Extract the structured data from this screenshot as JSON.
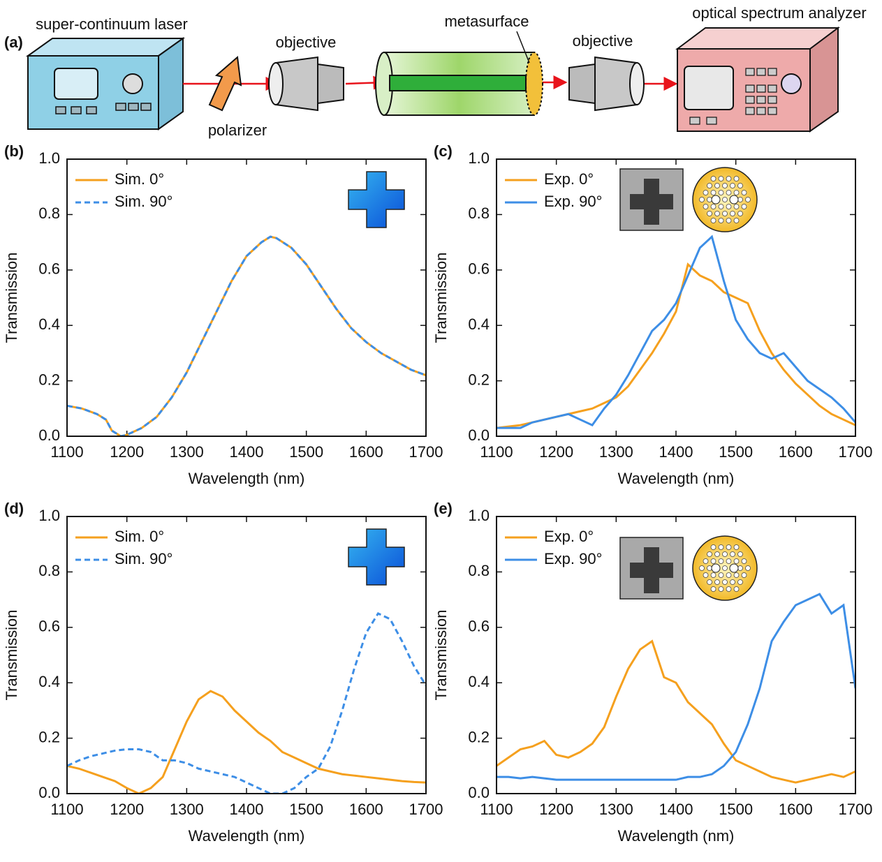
{
  "diagram": {
    "label": "(a)",
    "laser": "super-continuum laser",
    "polarizer": "polarizer",
    "objective_1": "objective",
    "metasurface": "metasurface",
    "objective_2": "objective",
    "analyzer": "optical spectrum analyzer"
  },
  "chart_data": [
    {
      "type": "line",
      "panel_label": "(b)",
      "xlabel": "Wavelength (nm)",
      "ylabel": "Transmission",
      "xlim": [
        1100,
        1700
      ],
      "xticks": [
        1100,
        1200,
        1300,
        1400,
        1500,
        1600,
        1700
      ],
      "ylim": [
        0,
        1
      ],
      "yticks": [
        {
          "value": 0,
          "label": "0.0"
        },
        0.2,
        0.4,
        0.6,
        0.8,
        {
          "value": 1,
          "label": "1.0"
        }
      ],
      "legend": "upper-left",
      "x": [
        1100,
        1125,
        1150,
        1165,
        1175,
        1190,
        1200,
        1225,
        1250,
        1275,
        1300,
        1325,
        1350,
        1375,
        1400,
        1425,
        1440,
        1450,
        1475,
        1500,
        1525,
        1550,
        1575,
        1600,
        1625,
        1650,
        1675,
        1700
      ],
      "series": [
        {
          "name": "Sim. 0°",
          "color": "#f5a01e",
          "dash": false,
          "values": [
            0.11,
            0.1,
            0.08,
            0.06,
            0.02,
            0.0,
            0.005,
            0.03,
            0.07,
            0.14,
            0.23,
            0.34,
            0.45,
            0.56,
            0.65,
            0.7,
            0.72,
            0.715,
            0.68,
            0.62,
            0.54,
            0.46,
            0.39,
            0.34,
            0.3,
            0.27,
            0.24,
            0.22
          ]
        },
        {
          "name": "Sim. 90°",
          "color": "#3d8ee6",
          "dash": true,
          "values": [
            0.11,
            0.1,
            0.08,
            0.06,
            0.02,
            0.0,
            0.005,
            0.03,
            0.07,
            0.14,
            0.23,
            0.34,
            0.45,
            0.56,
            0.65,
            0.7,
            0.72,
            0.715,
            0.68,
            0.62,
            0.54,
            0.46,
            0.39,
            0.34,
            0.3,
            0.27,
            0.24,
            0.22
          ]
        }
      ]
    },
    {
      "type": "line",
      "panel_label": "(c)",
      "xlabel": "Wavelength (nm)",
      "ylabel": "Transmission",
      "xlim": [
        1100,
        1700
      ],
      "xticks": [
        1100,
        1200,
        1300,
        1400,
        1500,
        1600,
        1700
      ],
      "ylim": [
        0,
        1
      ],
      "yticks": [
        {
          "value": 0,
          "label": "0.0"
        },
        0.2,
        0.4,
        0.6,
        0.8,
        {
          "value": 1,
          "label": "1.0"
        }
      ],
      "legend": "upper-left",
      "x": [
        1100,
        1120,
        1140,
        1160,
        1180,
        1200,
        1220,
        1240,
        1260,
        1280,
        1300,
        1320,
        1340,
        1360,
        1380,
        1400,
        1420,
        1440,
        1460,
        1480,
        1500,
        1520,
        1540,
        1560,
        1580,
        1600,
        1620,
        1640,
        1660,
        1680,
        1700
      ],
      "series": [
        {
          "name": "Exp. 0°",
          "color": "#f5a01e",
          "dash": false,
          "values": [
            0.03,
            0.035,
            0.04,
            0.05,
            0.06,
            0.07,
            0.08,
            0.09,
            0.1,
            0.12,
            0.14,
            0.18,
            0.24,
            0.3,
            0.37,
            0.45,
            0.62,
            0.58,
            0.56,
            0.52,
            0.5,
            0.48,
            0.38,
            0.3,
            0.24,
            0.19,
            0.15,
            0.11,
            0.08,
            0.06,
            0.04
          ]
        },
        {
          "name": "Exp. 90°",
          "color": "#3d8ee6",
          "dash": false,
          "values": [
            0.03,
            0.03,
            0.03,
            0.05,
            0.06,
            0.07,
            0.08,
            0.06,
            0.04,
            0.1,
            0.15,
            0.22,
            0.3,
            0.38,
            0.42,
            0.48,
            0.58,
            0.68,
            0.72,
            0.56,
            0.42,
            0.35,
            0.3,
            0.28,
            0.3,
            0.25,
            0.2,
            0.17,
            0.14,
            0.1,
            0.05
          ]
        }
      ]
    },
    {
      "type": "line",
      "panel_label": "(d)",
      "xlabel": "Wavelength (nm)",
      "ylabel": "Transmission",
      "xlim": [
        1100,
        1700
      ],
      "xticks": [
        1100,
        1200,
        1300,
        1400,
        1500,
        1600,
        1700
      ],
      "ylim": [
        0,
        1
      ],
      "yticks": [
        {
          "value": 0,
          "label": "0.0"
        },
        0.2,
        0.4,
        0.6,
        0.8,
        {
          "value": 1,
          "label": "1.0"
        }
      ],
      "legend": "upper-left",
      "x": [
        1100,
        1120,
        1140,
        1160,
        1180,
        1200,
        1220,
        1240,
        1260,
        1280,
        1300,
        1320,
        1340,
        1360,
        1380,
        1400,
        1420,
        1440,
        1460,
        1480,
        1500,
        1520,
        1540,
        1560,
        1580,
        1600,
        1620,
        1640,
        1660,
        1680,
        1700
      ],
      "series": [
        {
          "name": "Sim. 0°",
          "color": "#f5a01e",
          "dash": false,
          "values": [
            0.1,
            0.09,
            0.075,
            0.06,
            0.045,
            0.02,
            0.0,
            0.02,
            0.06,
            0.16,
            0.26,
            0.34,
            0.37,
            0.35,
            0.3,
            0.26,
            0.22,
            0.19,
            0.15,
            0.13,
            0.11,
            0.09,
            0.08,
            0.07,
            0.065,
            0.06,
            0.055,
            0.05,
            0.045,
            0.042,
            0.04
          ]
        },
        {
          "name": "Sim. 90°",
          "color": "#3d8ee6",
          "dash": true,
          "values": [
            0.1,
            0.12,
            0.135,
            0.145,
            0.155,
            0.16,
            0.16,
            0.15,
            0.12,
            0.12,
            0.11,
            0.09,
            0.08,
            0.07,
            0.06,
            0.04,
            0.02,
            0.0,
            0.0,
            0.02,
            0.06,
            0.09,
            0.17,
            0.3,
            0.45,
            0.58,
            0.65,
            0.63,
            0.55,
            0.46,
            0.39
          ]
        }
      ]
    },
    {
      "type": "line",
      "panel_label": "(e)",
      "xlabel": "Wavelength (nm)",
      "ylabel": "Transmission",
      "xlim": [
        1100,
        1700
      ],
      "xticks": [
        1100,
        1200,
        1300,
        1400,
        1500,
        1600,
        1700
      ],
      "ylim": [
        0,
        1
      ],
      "yticks": [
        {
          "value": 0,
          "label": "0.0"
        },
        0.2,
        0.4,
        0.6,
        0.8,
        {
          "value": 1,
          "label": "1.0"
        }
      ],
      "legend": "upper-left",
      "x": [
        1100,
        1120,
        1140,
        1160,
        1180,
        1200,
        1220,
        1240,
        1260,
        1280,
        1300,
        1320,
        1340,
        1360,
        1380,
        1400,
        1420,
        1440,
        1460,
        1480,
        1500,
        1520,
        1540,
        1560,
        1580,
        1600,
        1620,
        1640,
        1660,
        1680,
        1700
      ],
      "series": [
        {
          "name": "Exp. 0°",
          "color": "#f5a01e",
          "dash": false,
          "values": [
            0.1,
            0.13,
            0.16,
            0.17,
            0.19,
            0.14,
            0.13,
            0.15,
            0.18,
            0.24,
            0.35,
            0.45,
            0.52,
            0.55,
            0.42,
            0.4,
            0.33,
            0.29,
            0.25,
            0.18,
            0.12,
            0.1,
            0.08,
            0.06,
            0.05,
            0.04,
            0.05,
            0.06,
            0.07,
            0.06,
            0.08
          ]
        },
        {
          "name": "Exp. 90°",
          "color": "#3d8ee6",
          "dash": false,
          "values": [
            0.06,
            0.06,
            0.055,
            0.06,
            0.055,
            0.05,
            0.05,
            0.05,
            0.05,
            0.05,
            0.05,
            0.05,
            0.05,
            0.05,
            0.05,
            0.05,
            0.06,
            0.06,
            0.07,
            0.1,
            0.15,
            0.25,
            0.38,
            0.55,
            0.62,
            0.68,
            0.7,
            0.72,
            0.65,
            0.68,
            0.38
          ]
        }
      ]
    }
  ]
}
